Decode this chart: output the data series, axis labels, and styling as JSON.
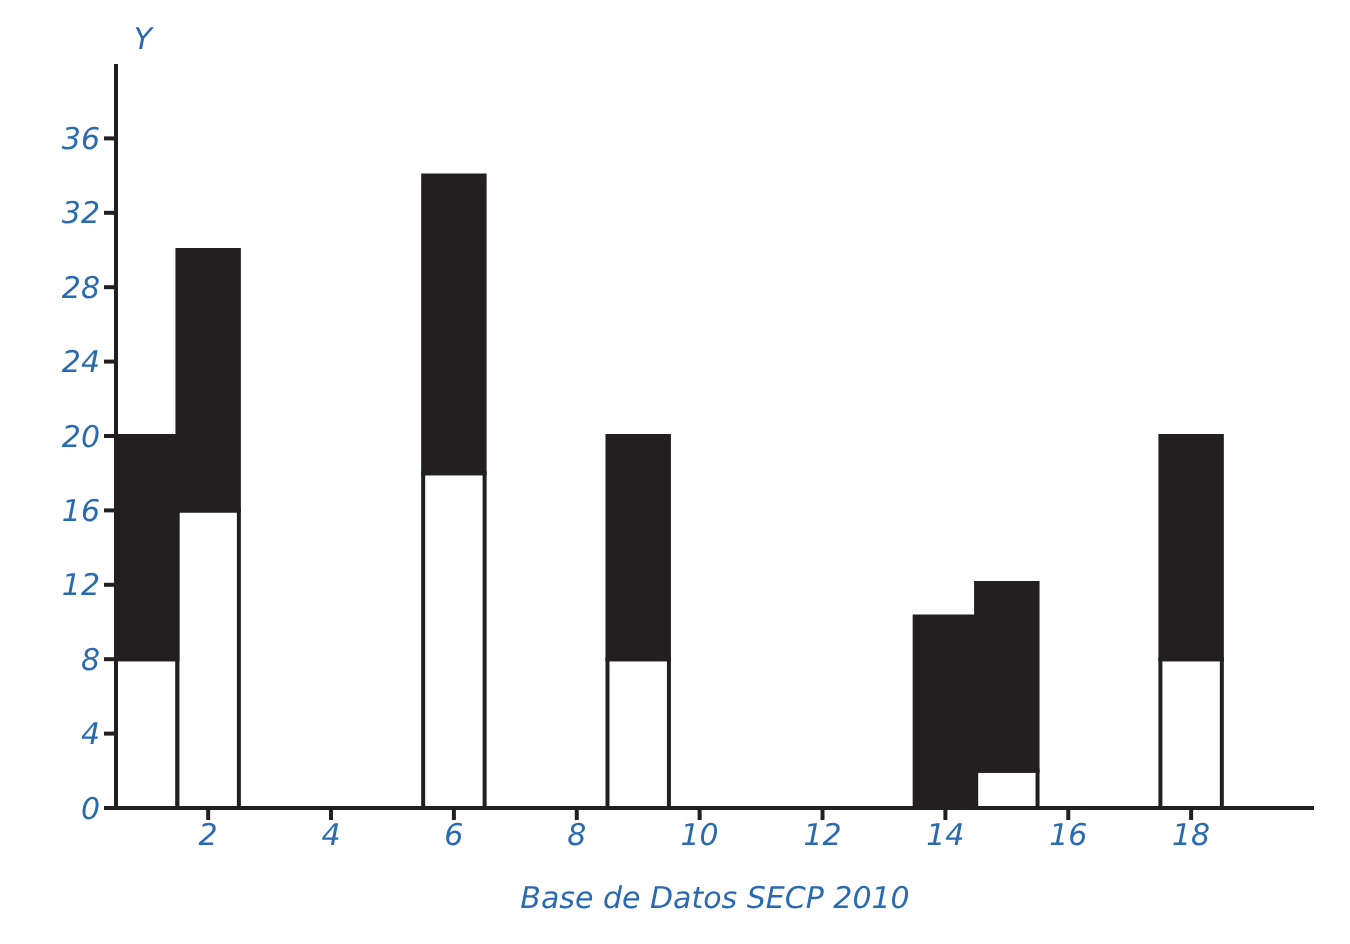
{
  "chart_data": {
    "type": "bar",
    "stacked": true,
    "xlabel": "Base de Datos SECP 2010",
    "ylabel": "Y",
    "x": [
      1,
      2,
      6,
      9,
      14,
      15,
      18
    ],
    "series": [
      {
        "color": "#ffffff",
        "values": [
          8,
          16,
          18,
          8,
          0,
          2,
          8
        ]
      },
      {
        "color": "#231f20",
        "values": [
          12,
          14,
          16,
          12,
          10.3,
          10.1,
          12
        ]
      }
    ],
    "xlim": [
      0.5,
      20
    ],
    "xticks": [
      2,
      4,
      6,
      8,
      10,
      12,
      14,
      16,
      18
    ],
    "ylim": [
      0,
      40
    ],
    "yticks": [
      0,
      4,
      8,
      12,
      16,
      20,
      24,
      28,
      32,
      36
    ],
    "grid": false,
    "legend": false
  }
}
